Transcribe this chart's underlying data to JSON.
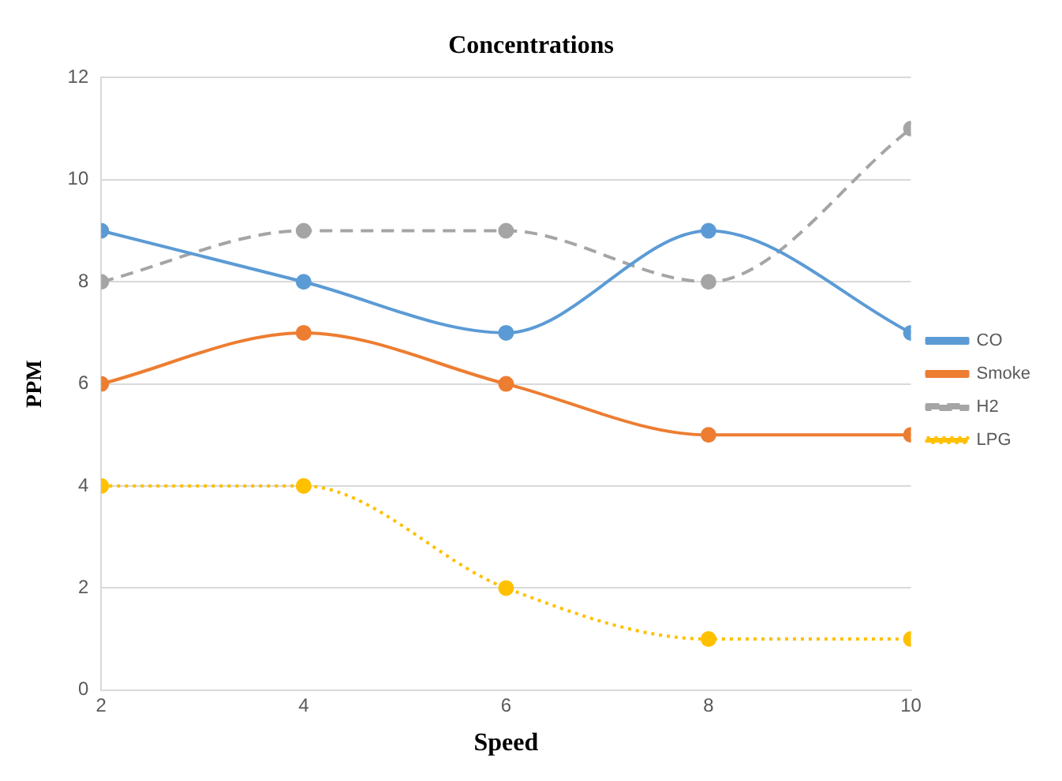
{
  "chart_data": {
    "type": "line",
    "title": "Concentrations",
    "xlabel": "Speed",
    "ylabel": "PPM",
    "x": [
      2,
      4,
      6,
      8,
      10
    ],
    "xlim": [
      2,
      10
    ],
    "xticks": [
      2,
      4,
      6,
      8,
      10
    ],
    "ylim": [
      0,
      12
    ],
    "yticks": [
      0,
      2,
      4,
      6,
      8,
      10,
      12
    ],
    "grid": "y",
    "legend": "right",
    "marker": "circle",
    "series": [
      {
        "name": "CO",
        "color": "#5b9bd5",
        "values": [
          9,
          8,
          7,
          9,
          7
        ],
        "line_style": "solid"
      },
      {
        "name": "Smoke",
        "color": "#ed7d31",
        "values": [
          6,
          7,
          6,
          5,
          5
        ],
        "line_style": "solid"
      },
      {
        "name": "H2",
        "color": "#a5a5a5",
        "values": [
          8,
          9,
          9,
          8,
          11
        ],
        "line_style": "dashed"
      },
      {
        "name": "LPG",
        "color": "#ffc000",
        "values": [
          4,
          4,
          2,
          1,
          1
        ],
        "line_style": "dotted"
      }
    ]
  }
}
